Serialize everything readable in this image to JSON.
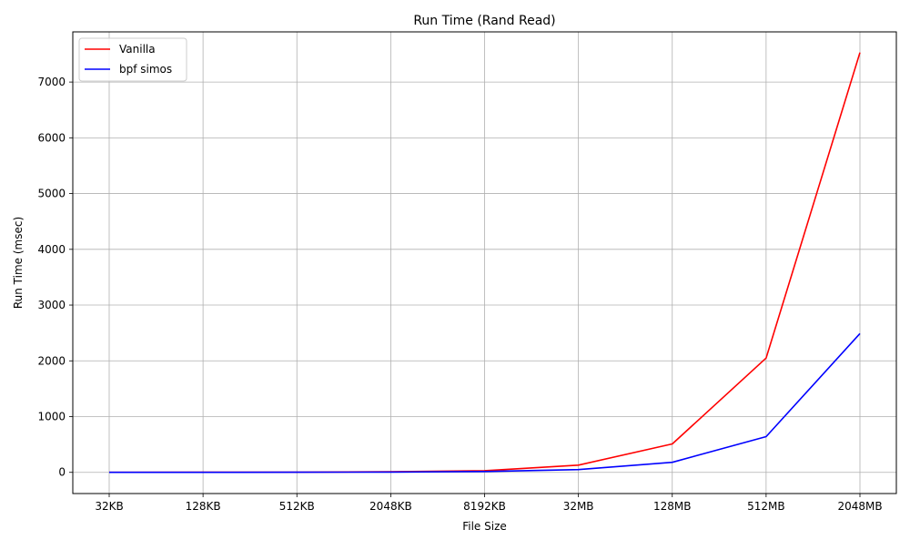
{
  "chart_data": {
    "type": "line",
    "title": "Run Time (Rand Read)",
    "xlabel": "File Size",
    "ylabel": "Run Time (msec)",
    "categories": [
      "32KB",
      "128KB",
      "512KB",
      "2048KB",
      "8192KB",
      "32MB",
      "128MB",
      "512MB",
      "2048MB"
    ],
    "ylim": [
      -380,
      7900
    ],
    "yticks": [
      0,
      1000,
      2000,
      3000,
      4000,
      5000,
      6000,
      7000
    ],
    "grid": true,
    "legend_position": "top-left",
    "series": [
      {
        "name": "Vanilla",
        "color": "#ff0000",
        "values": [
          1,
          2,
          4,
          10,
          30,
          130,
          510,
          2050,
          7530
        ]
      },
      {
        "name": "bpf simos",
        "color": "#0000ff",
        "values": [
          0,
          1,
          2,
          5,
          15,
          50,
          180,
          640,
          2490
        ]
      }
    ]
  }
}
